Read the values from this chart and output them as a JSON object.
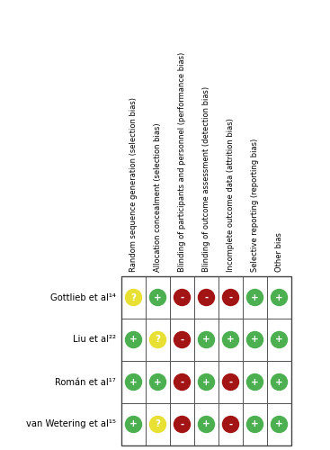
{
  "studies": [
    "Gottlieb et al¹⁴",
    "Liu et al²²",
    "Román et al¹⁷",
    "van Wetering et al¹⁵"
  ],
  "columns": [
    "Random sequence generation (selection bias)",
    "Allocation concealment (selection bias)",
    "Blinding of participants and personnel (performance bias)",
    "Blinding of outcome assessment (detection bias)",
    "Incomplete outcome data (attrition bias)",
    "Selective reporting (reporting bias)",
    "Other bias"
  ],
  "cells": [
    [
      "?",
      "+",
      "-",
      "-",
      "-",
      "+",
      "+"
    ],
    [
      "+",
      "?",
      "-",
      "+",
      "+",
      "+",
      "+"
    ],
    [
      "+",
      "+",
      "-",
      "+",
      "-",
      "+",
      "+"
    ],
    [
      "+",
      "?",
      "-",
      "+",
      "-",
      "+",
      "+"
    ]
  ],
  "colors": {
    "+": "#4CAF50",
    "-": "#A31515",
    "?": "#E8E033"
  },
  "bg_color": "#ffffff",
  "text_color": "#000000"
}
